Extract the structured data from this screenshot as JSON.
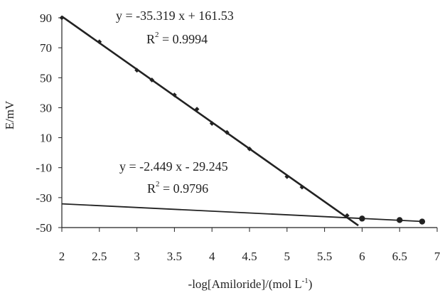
{
  "chart_data": {
    "type": "scatter",
    "xlabel": "-log[Amiloride]/(mol L",
    "xlabel_sup": "-1",
    "xlabel_close": ")",
    "ylabel": "E/mV",
    "xlim": [
      2,
      7
    ],
    "ylim": [
      -50,
      90
    ],
    "x_ticks": [
      "2",
      "2.5",
      "3",
      "3.5",
      "4",
      "4.5",
      "5",
      "5.5",
      "6",
      "6.5",
      "7"
    ],
    "y_ticks": [
      "90",
      "70",
      "50",
      "30",
      "10",
      "-10",
      "-30",
      "-50"
    ],
    "grid": false,
    "legend": "none",
    "series": [
      {
        "marker": "diamond",
        "x": [
          2.0,
          2.5,
          3.0,
          3.2,
          3.5,
          3.8,
          4.0,
          4.2,
          4.5,
          5.0,
          5.2,
          5.8
        ],
        "y": [
          90,
          74,
          55,
          48.5,
          38.5,
          29,
          19.5,
          13.5,
          2.5,
          -16,
          -23,
          -42
        ]
      },
      {
        "marker": "circle",
        "x": [
          6.0,
          6.5,
          6.8
        ],
        "y": [
          -44,
          -45,
          -46
        ]
      }
    ],
    "trendlines": [
      {
        "slope": -35.319,
        "intercept": 161.53,
        "x_range": [
          2.0,
          5.95
        ],
        "equation": "y = -35.319 x + 161.53",
        "r2_label": "R",
        "r2_sup": "2",
        "r2_value": " = 0.9994"
      },
      {
        "slope": -2.449,
        "intercept": -29.245,
        "x_range": [
          2.0,
          6.8
        ],
        "equation": "y = -2.449 x - 29.245",
        "r2_label": "R",
        "r2_sup": "2",
        "r2_value": " = 0.9796"
      }
    ],
    "colors": {
      "axis": "#222222",
      "series": "#222222"
    }
  }
}
